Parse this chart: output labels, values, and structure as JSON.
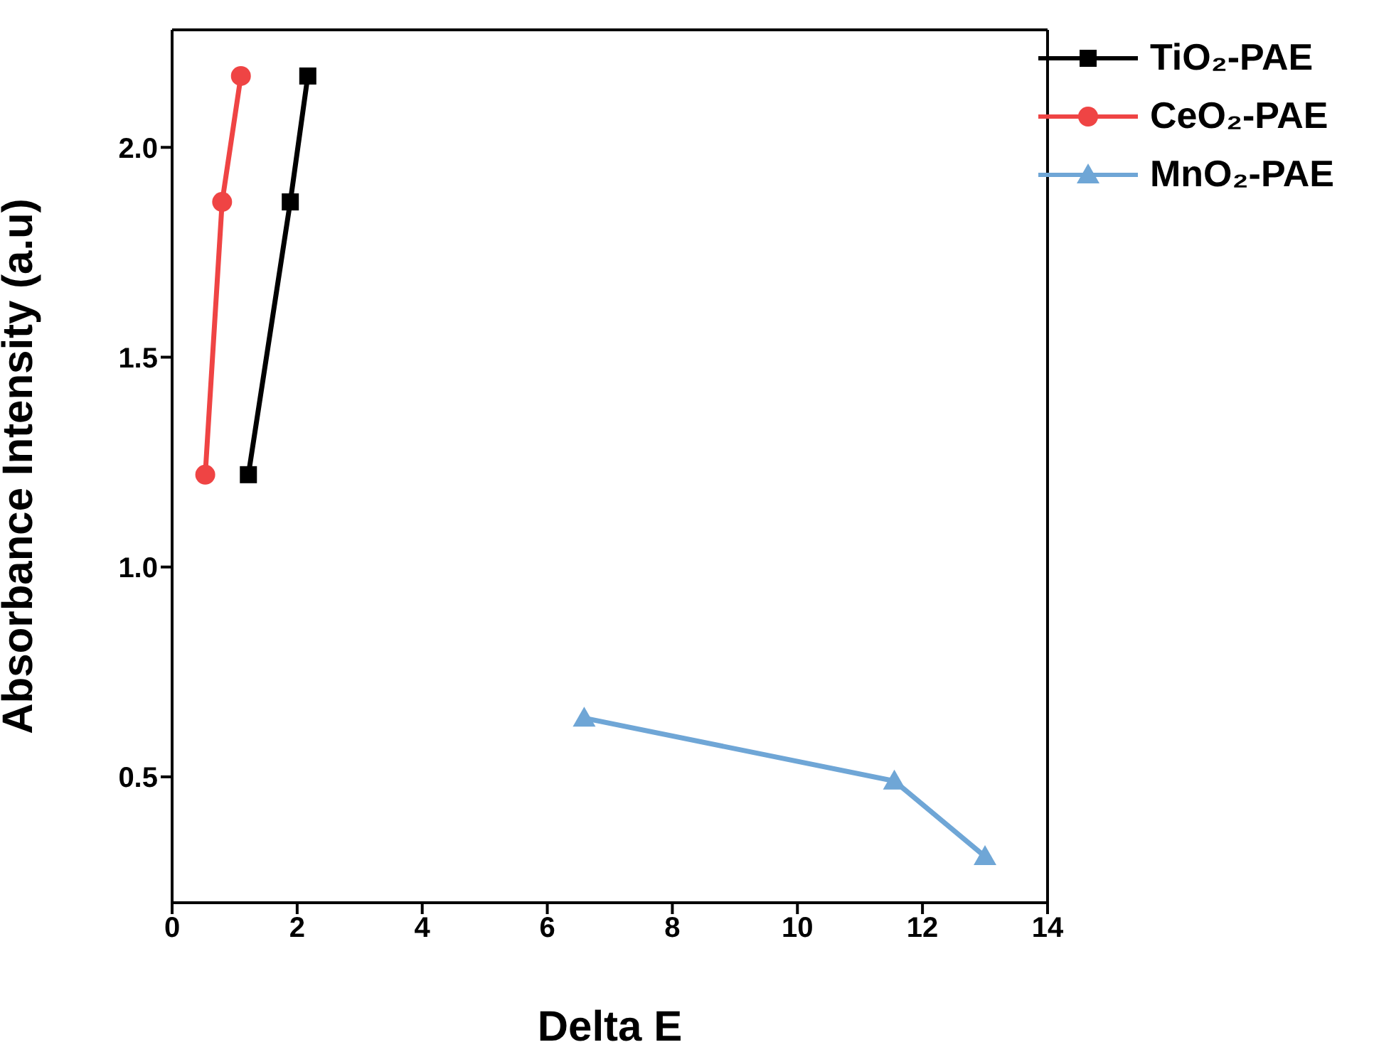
{
  "chart_data": {
    "type": "line",
    "xlabel": "Delta E",
    "ylabel": "Absorbance Intensity (a.u)",
    "xlim": [
      0,
      14
    ],
    "xticks": [
      0,
      2,
      4,
      6,
      8,
      10,
      12,
      14
    ],
    "ylim": [
      0.2,
      2.28
    ],
    "yticks": [
      0.5,
      {
        "value": 1,
        "label": "1.0"
      },
      1.5,
      {
        "value": 2,
        "label": "2.0"
      }
    ],
    "legend": "top right",
    "line_style": "solid",
    "series": [
      {
        "name": "TiO₂-PAE",
        "color": "#000000",
        "marker": "square",
        "x": [
          1.22,
          1.89,
          2.17
        ],
        "values": [
          1.22,
          1.87,
          2.17
        ]
      },
      {
        "name": "CeO₂-PAE",
        "color": "#ef4444",
        "marker": "circle",
        "x": [
          0.53,
          0.8,
          1.1
        ],
        "values": [
          1.22,
          1.87,
          2.17
        ]
      },
      {
        "name": "MnO₂-PAE",
        "color": "#6fa6d6",
        "marker": "triangle",
        "x": [
          6.59,
          11.55,
          13.0
        ],
        "values": [
          0.64,
          0.49,
          0.31
        ]
      }
    ]
  }
}
